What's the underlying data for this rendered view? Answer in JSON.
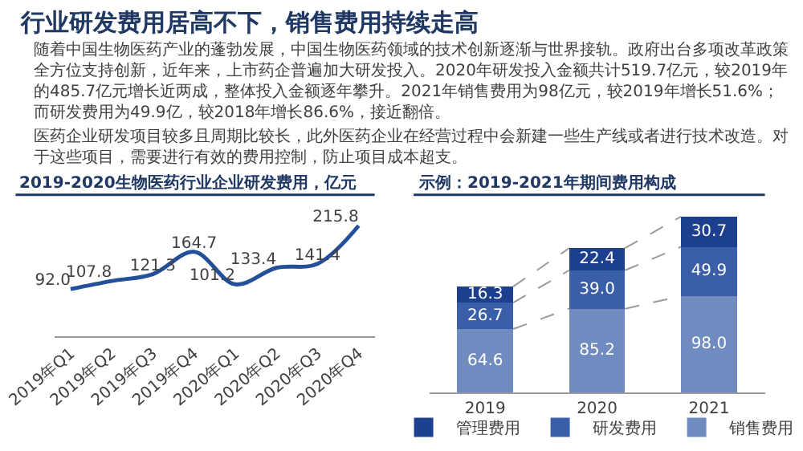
{
  "chart_data": [
    {
      "type": "other",
      "title": "行业研发费用居高不下，销售费用持续走高",
      "annotations": [
        "随着中国生物医药产业的蓬勃发展，中国生物医药领域的技术创新逐渐与世界接轨。政府出台多项改革政策全方位支持创新，近年来，上市药企普遍加大研发投入。2020年研发投入金额共计519.7亿元，较2019年的485.7亿元增长近两成，整体投入金额逐年攀升。2021年销售费用为98亿元，较2019年增长51.6%；而研发费用为49.9亿，较2018年增长86.6%，接近翻倍。",
        "医药企业研发项目较多且周期比较长，此外医药企业在经营过程中会新建一些生产线或者进行技术改造。对于这些项目，需要进行有效的费用控制，防止项目成本超支。"
      ]
    },
    {
      "type": "line",
      "title": "2019-2020生物医药行业企业研发费用，亿元",
      "categories": [
        "2019年Q1",
        "2019年Q2",
        "2019年Q3",
        "2019年Q4",
        "2020年Q1",
        "2020年Q2",
        "2020年Q3",
        "2020年Q4"
      ],
      "series": [
        {
          "color": "#24509a",
          "values": [
            92.0,
            107.8,
            121.3,
            164.7,
            101.2,
            133.4,
            141.4,
            215.8
          ],
          "value_labels": [
            "92.0",
            "107.8",
            "121.3",
            "164.7",
            "101.2",
            "133.4",
            "141.4",
            "215.8"
          ]
        }
      ],
      "tick_labels": "x"
    },
    {
      "type": "bar",
      "title": "示例：2019-2021年期间费用构成",
      "stacked": true,
      "categories": [
        "2019",
        "2020",
        "2021"
      ],
      "series": [
        {
          "name": "销售费用",
          "color": "#6f8bc0",
          "values": [
            64.6,
            85.2,
            98.0
          ],
          "value_labels": [
            "64.6",
            "85.2",
            "98.0"
          ]
        },
        {
          "name": "研发费用",
          "color": "#3a5ea8",
          "values": [
            26.7,
            39.0,
            49.9
          ],
          "value_labels": [
            "26.7",
            "39.0",
            "49.9"
          ]
        },
        {
          "name": "管理费用",
          "color": "#1d3f8f",
          "values": [
            16.3,
            22.4,
            30.7
          ],
          "value_labels": [
            "16.3",
            "22.4",
            "30.7"
          ]
        }
      ],
      "tick_labels": "x",
      "legend": "bottom"
    }
  ]
}
